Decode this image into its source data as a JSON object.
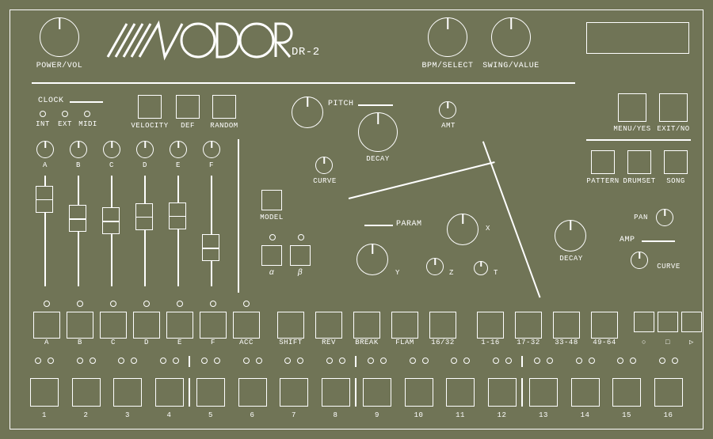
{
  "colors": {
    "bg": "#707456",
    "fg": "#ffffff",
    "stroke_width": 1.5
  },
  "brand": {
    "name": "MODOR",
    "model": "DR-2"
  },
  "top": {
    "power_vol": "POWER/VOL",
    "bpm_select": "BPM/SELECT",
    "swing_value": "SWING/VALUE"
  },
  "right_top": {
    "menu_yes": "MENU/YES",
    "exit_no": "EXIT/NO",
    "pattern": "PATTERN",
    "drumset": "DRUMSET",
    "song": "SONG"
  },
  "clock": {
    "title": "CLOCK",
    "modes": [
      "INT",
      "EXT",
      "MIDI"
    ]
  },
  "top_buttons": [
    "VELOCITY",
    "DEF",
    "RANDOM"
  ],
  "channel_knobs": [
    "A",
    "B",
    "C",
    "D",
    "E",
    "F"
  ],
  "pitch": {
    "title": "PITCH",
    "decay": "DECAY",
    "amt": "AMT",
    "curve": "CURVE"
  },
  "model": {
    "label": "MODEL",
    "alpha": "α",
    "beta": "β"
  },
  "param": {
    "title": "PARAM",
    "x": "X",
    "y": "Y",
    "z": "Z",
    "t": "T"
  },
  "amp": {
    "title": "AMP",
    "decay": "DECAY",
    "pan": "PAN",
    "curve": "CURVE"
  },
  "faders": {
    "channels": [
      "A",
      "B",
      "C",
      "D",
      "E",
      "F"
    ],
    "positions": [
      0.12,
      0.35,
      0.38,
      0.33,
      0.32,
      0.7
    ]
  },
  "row_top": {
    "channels": [
      "A",
      "B",
      "C",
      "D",
      "E",
      "F",
      "ACC"
    ],
    "mid": [
      "SHIFT",
      "REV",
      "BREAK",
      "FLAM",
      "16/32"
    ],
    "ranges": [
      "1-16",
      "17-32",
      "33-48",
      "49-64"
    ],
    "transport": [
      "○",
      "□",
      "▷"
    ]
  },
  "steps": [
    "1",
    "2",
    "3",
    "4",
    "5",
    "6",
    "7",
    "8",
    "9",
    "10",
    "11",
    "12",
    "13",
    "14",
    "15",
    "16"
  ]
}
